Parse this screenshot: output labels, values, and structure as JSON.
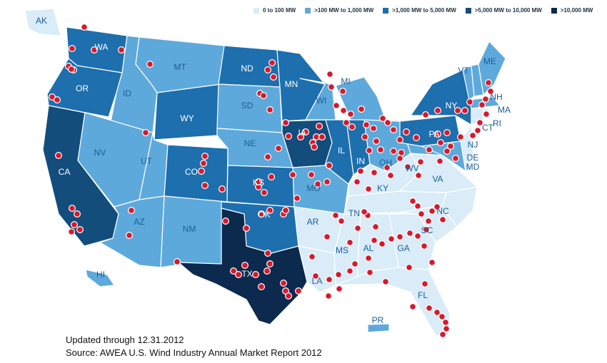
{
  "legend": [
    {
      "label": "0 to 100 MW",
      "color": "#d9ecf8"
    },
    {
      "label": ">100 MW to 1,000 MW",
      "color": "#5ea9db"
    },
    {
      "label": ">1,000 MW to 5,000 MW",
      "color": "#1d6fae"
    },
    {
      "label": ">5,000 MW to 10,000 MW",
      "color": "#124d7c"
    },
    {
      "label": ">10,000 MW",
      "color": "#0b2a4e"
    }
  ],
  "states": [
    {
      "abbr": "AK",
      "tier": 0
    },
    {
      "abbr": "HI",
      "tier": 1
    },
    {
      "abbr": "PR",
      "tier": 1
    },
    {
      "abbr": "WA",
      "tier": 2
    },
    {
      "abbr": "OR",
      "tier": 2
    },
    {
      "abbr": "CA",
      "tier": 3
    },
    {
      "abbr": "ID",
      "tier": 1
    },
    {
      "abbr": "NV",
      "tier": 1
    },
    {
      "abbr": "MT",
      "tier": 1
    },
    {
      "abbr": "WY",
      "tier": 2
    },
    {
      "abbr": "UT",
      "tier": 1
    },
    {
      "abbr": "CO",
      "tier": 2
    },
    {
      "abbr": "AZ",
      "tier": 1
    },
    {
      "abbr": "NM",
      "tier": 1
    },
    {
      "abbr": "ND",
      "tier": 2
    },
    {
      "abbr": "SD",
      "tier": 1
    },
    {
      "abbr": "NE",
      "tier": 1
    },
    {
      "abbr": "KS",
      "tier": 2
    },
    {
      "abbr": "OK",
      "tier": 2
    },
    {
      "abbr": "TX",
      "tier": 4
    },
    {
      "abbr": "MN",
      "tier": 2
    },
    {
      "abbr": "IA",
      "tier": 3
    },
    {
      "abbr": "MO",
      "tier": 1
    },
    {
      "abbr": "AR",
      "tier": 0
    },
    {
      "abbr": "LA",
      "tier": 0
    },
    {
      "abbr": "WI",
      "tier": 1
    },
    {
      "abbr": "IL",
      "tier": 2
    },
    {
      "abbr": "MI",
      "tier": 1
    },
    {
      "abbr": "IN",
      "tier": 2
    },
    {
      "abbr": "OH",
      "tier": 1
    },
    {
      "abbr": "KY",
      "tier": 0
    },
    {
      "abbr": "TN",
      "tier": 0
    },
    {
      "abbr": "MS",
      "tier": 0
    },
    {
      "abbr": "AL",
      "tier": 0
    },
    {
      "abbr": "GA",
      "tier": 0
    },
    {
      "abbr": "FL",
      "tier": 0
    },
    {
      "abbr": "SC",
      "tier": 0
    },
    {
      "abbr": "NC",
      "tier": 0
    },
    {
      "abbr": "VA",
      "tier": 0
    },
    {
      "abbr": "WV",
      "tier": 1
    },
    {
      "abbr": "PA",
      "tier": 2
    },
    {
      "abbr": "NY",
      "tier": 2
    },
    {
      "abbr": "VT",
      "tier": 1
    },
    {
      "abbr": "NH",
      "tier": 1
    },
    {
      "abbr": "ME",
      "tier": 1
    },
    {
      "abbr": "MA",
      "tier": 1
    },
    {
      "abbr": "CT",
      "tier": 0
    },
    {
      "abbr": "RI",
      "tier": 0
    },
    {
      "abbr": "NJ",
      "tier": 0
    },
    {
      "abbr": "DE",
      "tier": 0
    },
    {
      "abbr": "MD",
      "tier": 1
    }
  ],
  "marker_color": "#d7192b",
  "footer": {
    "updated": "Updated through 12.31.2012",
    "source": "Source: AWEA U.S. Wind Industry Annual Market Report 2012"
  }
}
